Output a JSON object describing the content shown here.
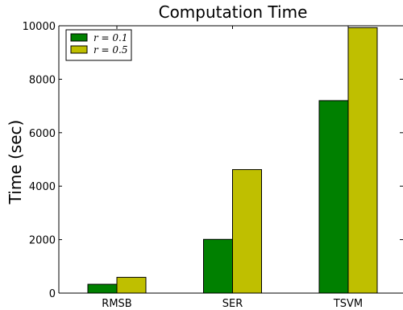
{
  "chart_data": {
    "type": "bar",
    "title": "Computation Time",
    "xlabel": "",
    "ylabel": "Time (sec)",
    "ylim": [
      0,
      10000
    ],
    "yticks": [
      0,
      2000,
      4000,
      6000,
      8000,
      10000
    ],
    "categories": [
      "RMSB",
      "SER",
      "TSVM"
    ],
    "series": [
      {
        "name": "r = 0.1",
        "values": [
          330,
          2010,
          7200
        ],
        "color": "#008000"
      },
      {
        "name": "r = 0.5",
        "values": [
          590,
          4620,
          9930
        ],
        "color": "#bfbf00"
      }
    ],
    "legend": {
      "placement": "top-left"
    },
    "grid": false
  }
}
